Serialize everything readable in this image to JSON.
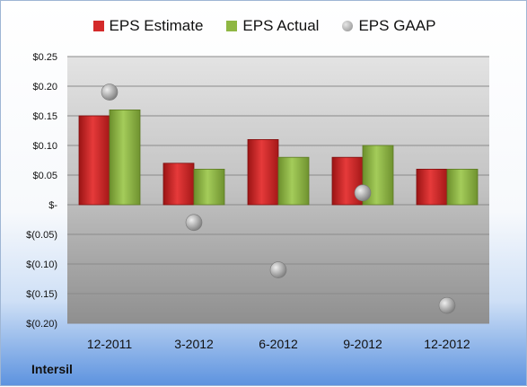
{
  "company": "Intersil",
  "colors": {
    "estimate": "#d42a2a",
    "actual": "#8fb743",
    "gaap": "#a9a9a9"
  },
  "chart_data": {
    "type": "bar",
    "categories": [
      "12-2011",
      "3-2012",
      "6-2012",
      "9-2012",
      "12-2012"
    ],
    "series": [
      {
        "name": "EPS Estimate",
        "values": [
          0.15,
          0.07,
          0.11,
          0.08,
          0.06
        ]
      },
      {
        "name": "EPS Actual",
        "values": [
          0.16,
          0.06,
          0.08,
          0.1,
          0.06
        ]
      },
      {
        "name": "EPS GAAP",
        "type": "scatter",
        "values": [
          0.19,
          -0.03,
          -0.11,
          0.02,
          -0.17
        ]
      }
    ],
    "ylim": [
      -0.2,
      0.25
    ],
    "yticks": [
      0.25,
      0.2,
      0.15,
      0.1,
      0.05,
      0,
      -0.05,
      -0.1,
      -0.15,
      -0.2
    ],
    "ytick_labels": [
      "$0.25",
      "$0.20",
      "$0.15",
      "$0.10",
      "$0.05",
      "$-",
      "$(0.05)",
      "$(0.10)",
      "$(0.15)",
      "$(0.20)"
    ],
    "legend_position": "top",
    "grid": true
  }
}
